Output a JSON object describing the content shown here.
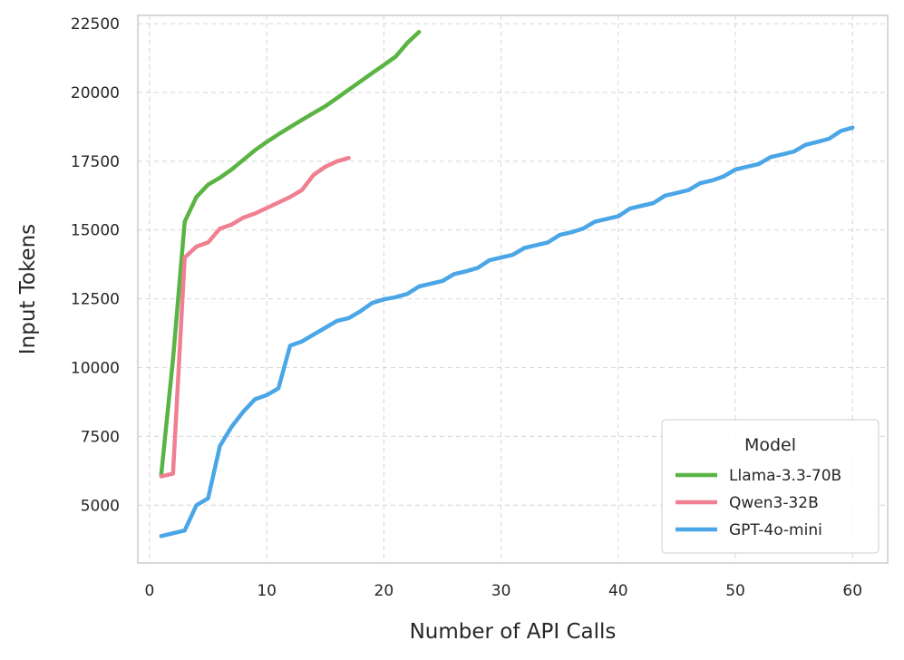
{
  "chart_data": {
    "type": "line",
    "xlabel": "Number of API Calls",
    "ylabel": "Input Tokens",
    "xlim": [
      -1,
      63
    ],
    "ylim": [
      2900,
      22800
    ],
    "x_ticks": [
      0,
      10,
      20,
      30,
      40,
      50,
      60
    ],
    "y_ticks": [
      5000,
      7500,
      10000,
      12500,
      15000,
      17500,
      20000,
      22500
    ],
    "grid": true,
    "legend": {
      "title": "Model",
      "placement": "bottom-right"
    },
    "series": [
      {
        "name": "Llama-3.3-70B",
        "color": "#5ab443",
        "x": [
          1,
          2,
          3,
          4,
          5,
          6,
          7,
          8,
          9,
          10,
          11,
          12,
          13,
          14,
          15,
          16,
          17,
          18,
          19,
          20,
          21,
          22,
          23
        ],
        "y": [
          6100,
          10300,
          15300,
          16200,
          16650,
          16900,
          17200,
          17550,
          17900,
          18200,
          18480,
          18740,
          19000,
          19250,
          19500,
          19800,
          20100,
          20400,
          20700,
          21000,
          21300,
          21800,
          22200
        ]
      },
      {
        "name": "Qwen3-32B",
        "color": "#f07f92",
        "x": [
          1,
          2,
          3,
          4,
          5,
          6,
          7,
          8,
          9,
          10,
          11,
          12,
          13,
          14,
          15,
          16,
          17
        ],
        "y": [
          6050,
          6150,
          14000,
          14400,
          14550,
          15050,
          15200,
          15450,
          15600,
          15800,
          16000,
          16200,
          16450,
          17000,
          17300,
          17500,
          17620
        ]
      },
      {
        "name": "GPT-4o-mini",
        "color": "#4aa6e6",
        "x": [
          1,
          2,
          3,
          4,
          5,
          6,
          7,
          8,
          9,
          10,
          11,
          12,
          13,
          14,
          15,
          16,
          17,
          18,
          19,
          20,
          21,
          22,
          23,
          24,
          25,
          26,
          27,
          28,
          29,
          30,
          31,
          32,
          33,
          34,
          35,
          36,
          37,
          38,
          39,
          40,
          41,
          42,
          43,
          44,
          45,
          46,
          47,
          48,
          49,
          50,
          51,
          52,
          53,
          54,
          55,
          56,
          57,
          58,
          59,
          60
        ],
        "y": [
          3880,
          3980,
          4080,
          5000,
          5250,
          7150,
          7850,
          8400,
          8850,
          9000,
          9250,
          10800,
          10950,
          11200,
          11450,
          11700,
          11800,
          12050,
          12350,
          12480,
          12560,
          12680,
          12950,
          13050,
          13150,
          13400,
          13500,
          13620,
          13900,
          14000,
          14100,
          14350,
          14450,
          14550,
          14820,
          14920,
          15050,
          15300,
          15400,
          15500,
          15780,
          15880,
          15980,
          16250,
          16350,
          16450,
          16700,
          16800,
          16950,
          17200,
          17300,
          17400,
          17650,
          17750,
          17850,
          18100,
          18200,
          18320,
          18600,
          18720
        ]
      }
    ]
  }
}
